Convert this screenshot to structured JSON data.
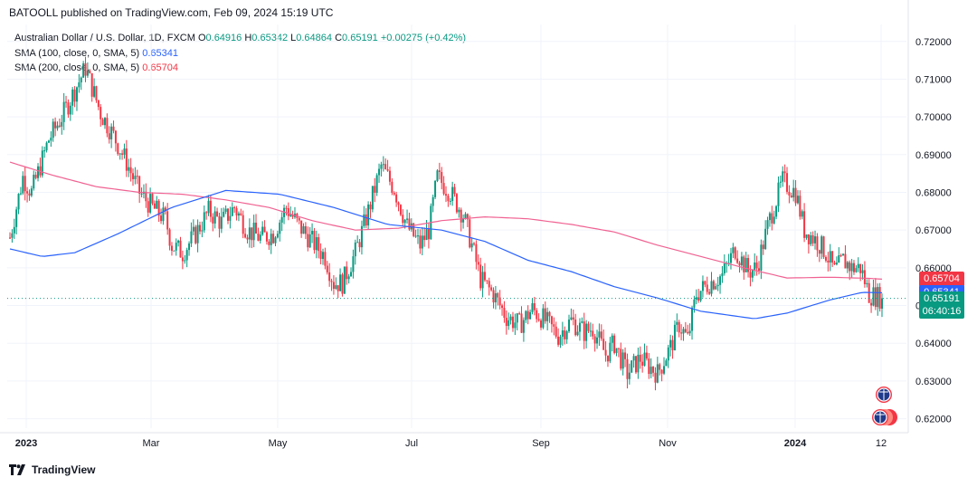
{
  "header": {
    "published": "BATOOLL published on TradingView.com, Feb 09, 2024 15:19 UTC"
  },
  "legend": {
    "symbol": "Australian Dollar / U.S. Dollar, 1D, FXCM",
    "open_label": "O",
    "open": "0.64916",
    "high_label": "H",
    "high": "0.65342",
    "low_label": "L",
    "low": "0.64864",
    "close_label": "C",
    "close": "0.65191",
    "change": "+0.00275 (+0.42%)",
    "sma100_label": "SMA (100, close, 0, SMA, 5)",
    "sma100_value": "0.65341",
    "sma200_label": "SMA (200, close, 0, SMA, 5)",
    "sma200_value": "0.65704"
  },
  "badges": {
    "sma200": "0.65704",
    "sma100": "0.65341",
    "price": "0.65191",
    "countdown": "06:40:16"
  },
  "footer": {
    "brand": "TradingView"
  },
  "colors": {
    "up": "#089981",
    "down": "#f23645",
    "sma100": "#2962ff",
    "sma200": "#f06292"
  },
  "chart_data": {
    "type": "candlestick",
    "title": "Australian Dollar / U.S. Dollar, 1D, FXCM",
    "y_ticks": [
      "0.72000",
      "0.71000",
      "0.70000",
      "0.69000",
      "0.68000",
      "0.67000",
      "0.66000",
      "0.65000",
      "0.64000",
      "0.63000",
      "0.62000"
    ],
    "ylim": [
      0.6175,
      0.7245
    ],
    "x_ticks": [
      "2023",
      "Mar",
      "May",
      "Jul",
      "Sep",
      "Nov",
      "2024",
      "12"
    ],
    "grid": true,
    "price_path": [
      [
        0,
        0.668
      ],
      [
        6,
        0.684
      ],
      [
        10,
        0.68
      ],
      [
        18,
        0.694
      ],
      [
        24,
        0.7
      ],
      [
        30,
        0.707
      ],
      [
        35,
        0.713
      ],
      [
        42,
        0.701
      ],
      [
        48,
        0.695
      ],
      [
        54,
        0.688
      ],
      [
        60,
        0.68
      ],
      [
        66,
        0.676
      ],
      [
        72,
        0.673
      ],
      [
        75,
        0.666
      ],
      [
        80,
        0.664
      ],
      [
        86,
        0.669
      ],
      [
        92,
        0.675
      ],
      [
        98,
        0.672
      ],
      [
        104,
        0.676
      ],
      [
        110,
        0.67
      ],
      [
        116,
        0.668
      ],
      [
        122,
        0.669
      ],
      [
        128,
        0.676
      ],
      [
        134,
        0.671
      ],
      [
        140,
        0.667
      ],
      [
        146,
        0.663
      ],
      [
        150,
        0.656
      ],
      [
        154,
        0.656
      ],
      [
        160,
        0.664
      ],
      [
        166,
        0.675
      ],
      [
        172,
        0.687
      ],
      [
        178,
        0.681
      ],
      [
        184,
        0.671
      ],
      [
        190,
        0.666
      ],
      [
        194,
        0.67
      ],
      [
        198,
        0.684
      ],
      [
        204,
        0.68
      ],
      [
        210,
        0.674
      ],
      [
        214,
        0.666
      ],
      [
        218,
        0.657
      ],
      [
        224,
        0.653
      ],
      [
        230,
        0.647
      ],
      [
        236,
        0.645
      ],
      [
        242,
        0.649
      ],
      [
        248,
        0.646
      ],
      [
        254,
        0.642
      ],
      [
        260,
        0.646
      ],
      [
        266,
        0.643
      ],
      [
        270,
        0.644
      ],
      [
        276,
        0.637
      ],
      [
        280,
        0.64
      ],
      [
        286,
        0.632
      ],
      [
        292,
        0.636
      ],
      [
        296,
        0.634
      ],
      [
        300,
        0.632
      ],
      [
        306,
        0.639
      ],
      [
        310,
        0.645
      ],
      [
        314,
        0.641
      ],
      [
        318,
        0.653
      ],
      [
        324,
        0.656
      ],
      [
        330,
        0.658
      ],
      [
        336,
        0.665
      ],
      [
        342,
        0.659
      ],
      [
        346,
        0.66
      ],
      [
        352,
        0.673
      ],
      [
        358,
        0.683
      ],
      [
        364,
        0.68
      ],
      [
        368,
        0.67
      ],
      [
        374,
        0.667
      ],
      [
        378,
        0.664
      ],
      [
        382,
        0.659
      ],
      [
        386,
        0.662
      ],
      [
        390,
        0.66
      ],
      [
        394,
        0.66
      ],
      [
        398,
        0.653
      ],
      [
        404,
        0.652
      ]
    ],
    "sma100": [
      [
        0,
        0.665
      ],
      [
        15,
        0.663
      ],
      [
        30,
        0.664
      ],
      [
        50,
        0.669
      ],
      [
        75,
        0.676
      ],
      [
        100,
        0.6805
      ],
      [
        125,
        0.6795
      ],
      [
        150,
        0.676
      ],
      [
        175,
        0.6715
      ],
      [
        200,
        0.67
      ],
      [
        220,
        0.667
      ],
      [
        240,
        0.662
      ],
      [
        260,
        0.659
      ],
      [
        280,
        0.655
      ],
      [
        300,
        0.652
      ],
      [
        320,
        0.6485
      ],
      [
        345,
        0.6465
      ],
      [
        360,
        0.648
      ],
      [
        380,
        0.6515
      ],
      [
        395,
        0.6535
      ],
      [
        404,
        0.6534
      ]
    ],
    "sma200": [
      [
        0,
        0.688
      ],
      [
        20,
        0.6845
      ],
      [
        40,
        0.6815
      ],
      [
        60,
        0.68
      ],
      [
        80,
        0.6795
      ],
      [
        100,
        0.678
      ],
      [
        120,
        0.676
      ],
      [
        140,
        0.6725
      ],
      [
        160,
        0.67
      ],
      [
        180,
        0.6705
      ],
      [
        200,
        0.6725
      ],
      [
        220,
        0.6735
      ],
      [
        240,
        0.673
      ],
      [
        260,
        0.6715
      ],
      [
        280,
        0.6695
      ],
      [
        300,
        0.666
      ],
      [
        320,
        0.663
      ],
      [
        340,
        0.66
      ],
      [
        360,
        0.6573
      ],
      [
        380,
        0.6575
      ],
      [
        398,
        0.6572
      ],
      [
        404,
        0.657
      ]
    ],
    "last_price": 0.65191
  }
}
